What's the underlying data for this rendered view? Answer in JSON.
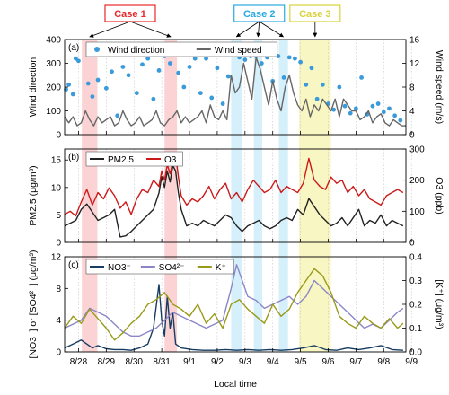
{
  "xaxis": {
    "label": "Local time",
    "ticks": [
      "8/28",
      "8/29",
      "8/30",
      "8/31",
      "9/1",
      "9/2",
      "9/3",
      "9/4",
      "9/5",
      "9/6",
      "9/7",
      "9/8",
      "9/9"
    ],
    "range": [
      0,
      12.3
    ]
  },
  "cases": [
    {
      "label": "Case 1",
      "color": "#e8282b",
      "spans": [
        [
          0.62,
          1.18
        ],
        [
          3.6,
          4.05
        ]
      ]
    },
    {
      "label": "Case 2",
      "color": "#2aa9e0",
      "spans": [
        [
          6.0,
          6.38
        ],
        [
          6.82,
          7.12
        ],
        [
          7.72,
          8.05
        ]
      ]
    },
    {
      "label": "Case 3",
      "color": "#d8d23a",
      "spans": [
        [
          8.45,
          9.6
        ]
      ]
    }
  ],
  "colors": {
    "case1_fill": "#fbd3d4",
    "case2_fill": "#d6f0fb",
    "case3_fill": "#f8f6c3"
  },
  "chart_data": [
    {
      "type": "scatter+line",
      "panel_label": "(a)",
      "ylabel": "Wind direction",
      "y2label": "Wind speed (m/s)",
      "ylim": [
        0,
        400
      ],
      "y2lim": [
        0,
        16
      ],
      "yticks": [
        "0",
        "100",
        "200",
        "300",
        "400"
      ],
      "y2ticks": [
        "0",
        "4",
        "8",
        "12",
        "16"
      ],
      "legend": [
        "Wind direction",
        "Wind speed"
      ],
      "series": [
        {
          "name": "Wind direction",
          "color": "#3b9ad9",
          "axis": "left",
          "kind": "points",
          "x": [
            0.05,
            0.15,
            0.3,
            0.4,
            0.5,
            0.85,
            1.0,
            1.2,
            1.5,
            1.7,
            1.9,
            2.1,
            2.3,
            2.6,
            2.8,
            3.0,
            3.2,
            3.4,
            3.6,
            3.8,
            4.1,
            4.3,
            4.5,
            4.7,
            4.9,
            5.1,
            5.3,
            5.5,
            5.7,
            5.9,
            6.1,
            6.3,
            6.5,
            6.7,
            6.9,
            7.1,
            7.3,
            7.5,
            7.7,
            7.9,
            8.1,
            8.3,
            8.5,
            8.7,
            8.9,
            9.1,
            9.3,
            9.5,
            9.7,
            9.9,
            10.1,
            10.3,
            10.5,
            10.7,
            10.9,
            11.1,
            11.3,
            11.5,
            11.7,
            11.9,
            12.1
          ],
          "y": [
            190,
            210,
            170,
            320,
            310,
            215,
            160,
            230,
            195,
            265,
            80,
            285,
            250,
            175,
            295,
            320,
            150,
            270,
            330,
            300,
            260,
            200,
            285,
            320,
            175,
            320,
            155,
            280,
            130,
            245,
            335,
            325,
            315,
            330,
            330,
            300,
            325,
            225,
            330,
            240,
            325,
            320,
            305,
            210,
            280,
            150,
            210,
            130,
            105,
            200,
            120,
            90,
            110,
            240,
            85,
            120,
            130,
            95,
            110,
            80,
            60
          ]
        },
        {
          "name": "Wind speed",
          "color": "#666666",
          "axis": "right",
          "kind": "line",
          "x": [
            0,
            0.15,
            0.3,
            0.45,
            0.6,
            0.75,
            0.9,
            1.05,
            1.2,
            1.35,
            1.5,
            1.65,
            1.8,
            1.95,
            2.1,
            2.25,
            2.4,
            2.55,
            2.7,
            2.85,
            3.0,
            3.15,
            3.3,
            3.45,
            3.6,
            3.75,
            3.9,
            4.05,
            4.2,
            4.35,
            4.5,
            4.65,
            4.8,
            4.95,
            5.1,
            5.25,
            5.4,
            5.55,
            5.7,
            5.85,
            6.0,
            6.15,
            6.3,
            6.45,
            6.6,
            6.75,
            6.9,
            7.05,
            7.2,
            7.35,
            7.5,
            7.65,
            7.8,
            7.95,
            8.1,
            8.25,
            8.4,
            8.55,
            8.7,
            8.85,
            9.0,
            9.15,
            9.3,
            9.45,
            9.6,
            9.75,
            9.9,
            10.05,
            10.2,
            10.35,
            10.5,
            10.65,
            10.8,
            10.95,
            11.1,
            11.25,
            11.4,
            11.55,
            11.7,
            11.85,
            12.0,
            12.15,
            12.3
          ],
          "y": [
            3,
            2,
            3,
            1.5,
            2,
            4,
            2.5,
            1.5,
            3,
            2,
            2.5,
            3,
            1.5,
            2,
            4,
            2.5,
            1.5,
            2,
            3,
            1.5,
            2,
            2.5,
            4,
            2,
            1.5,
            2.5,
            3,
            4,
            2,
            3,
            2,
            2.5,
            3,
            4,
            2,
            5,
            3,
            2.5,
            4,
            2.5,
            10,
            7,
            8,
            12,
            9,
            6,
            13,
            11,
            8,
            5,
            9,
            6,
            4,
            8,
            10,
            7,
            5,
            4,
            6,
            3,
            5,
            4,
            6,
            5,
            4,
            6,
            3,
            6,
            5,
            4,
            4,
            2.5,
            3,
            4,
            2,
            3,
            3.5,
            2,
            1.5,
            2.5,
            2,
            1.5,
            1.5
          ]
        }
      ]
    },
    {
      "type": "line",
      "panel_label": "(b)",
      "ylabel": "PM2.5 (μg/m³)",
      "y2label": "O3 (ppb)",
      "ylim": [
        0,
        17
      ],
      "y2lim": [
        0,
        300
      ],
      "yticks": [
        "0",
        "5",
        "10",
        "15"
      ],
      "y2ticks": [
        "0",
        "100",
        "200",
        "300"
      ],
      "legend": [
        "PM2.5",
        "O3"
      ],
      "series": [
        {
          "name": "PM2.5",
          "color": "#222222",
          "axis": "left",
          "x": [
            0,
            0.2,
            0.4,
            0.6,
            0.8,
            1.0,
            1.2,
            1.4,
            1.6,
            1.8,
            2.0,
            2.2,
            2.4,
            2.6,
            2.8,
            3.0,
            3.2,
            3.4,
            3.5,
            3.6,
            3.7,
            3.8,
            3.9,
            4.0,
            4.1,
            4.2,
            4.4,
            4.6,
            4.8,
            5.0,
            5.2,
            5.4,
            5.6,
            5.8,
            6.0,
            6.2,
            6.4,
            6.6,
            6.8,
            7.0,
            7.2,
            7.4,
            7.6,
            7.8,
            8.0,
            8.2,
            8.4,
            8.6,
            8.8,
            9.0,
            9.2,
            9.4,
            9.6,
            9.8,
            10.0,
            10.2,
            10.4,
            10.6,
            10.8,
            11.0,
            11.2,
            11.4,
            11.6,
            11.8,
            12.0,
            12.2
          ],
          "y": [
            3,
            3.5,
            4,
            6,
            7,
            5.5,
            4,
            4.5,
            5,
            6,
            1,
            1.2,
            2,
            3,
            4,
            5,
            6,
            9,
            12,
            10,
            13,
            11,
            14,
            13,
            9,
            6,
            3,
            3.5,
            3,
            4,
            3.5,
            3,
            4,
            5,
            4.5,
            3,
            2,
            3,
            3.5,
            4,
            3,
            2.5,
            3,
            4,
            4.5,
            4,
            6,
            5,
            8,
            6.5,
            5,
            4,
            3,
            3.5,
            4.5,
            3,
            4.5,
            6,
            3,
            4,
            3.5,
            5,
            3,
            4,
            3.5,
            3
          ]
        },
        {
          "name": "O3",
          "color": "#cc1a1a",
          "axis": "right",
          "x": [
            0,
            0.2,
            0.4,
            0.6,
            0.8,
            1.0,
            1.2,
            1.4,
            1.6,
            1.8,
            2.0,
            2.2,
            2.4,
            2.6,
            2.8,
            3.0,
            3.2,
            3.4,
            3.5,
            3.6,
            3.7,
            3.8,
            3.9,
            4.0,
            4.1,
            4.2,
            4.4,
            4.6,
            4.8,
            5.0,
            5.2,
            5.4,
            5.6,
            5.8,
            6.0,
            6.2,
            6.4,
            6.6,
            6.8,
            7.0,
            7.2,
            7.4,
            7.6,
            7.8,
            8.0,
            8.2,
            8.4,
            8.6,
            8.8,
            9.0,
            9.2,
            9.4,
            9.6,
            9.8,
            10.0,
            10.2,
            10.4,
            10.6,
            10.8,
            11.0,
            11.2,
            11.4,
            11.6,
            11.8,
            12.0,
            12.2
          ],
          "y": [
            90,
            100,
            85,
            130,
            170,
            120,
            160,
            140,
            175,
            150,
            110,
            130,
            90,
            140,
            170,
            160,
            200,
            180,
            230,
            200,
            250,
            220,
            260,
            280,
            210,
            150,
            120,
            140,
            130,
            150,
            180,
            140,
            170,
            190,
            140,
            160,
            130,
            170,
            200,
            180,
            160,
            170,
            200,
            160,
            180,
            170,
            160,
            190,
            270,
            200,
            180,
            170,
            210,
            190,
            200,
            160,
            180,
            150,
            170,
            140,
            130,
            120,
            150,
            160,
            170,
            160
          ]
        }
      ]
    },
    {
      "type": "line",
      "panel_label": "(c)",
      "ylabel": "[NO3⁻] or [SO4²⁻] (μg/m³)",
      "y2label": "[K⁺] (μg/m³)",
      "ylim": [
        0,
        12
      ],
      "y2lim": [
        0,
        0.4
      ],
      "yticks": [
        "0",
        "4",
        "8",
        "12"
      ],
      "y2ticks": [
        "0.0",
        "0.1",
        "0.2",
        "0.3",
        "0.4"
      ],
      "legend": [
        "NO3⁻",
        "SO4²⁻",
        "K⁺"
      ],
      "series": [
        {
          "name": "NO3⁻",
          "color": "#173d63",
          "axis": "left",
          "x": [
            0,
            0.3,
            0.6,
            0.8,
            1.0,
            1.2,
            1.5,
            1.8,
            2.1,
            2.4,
            2.7,
            3.0,
            3.2,
            3.4,
            3.5,
            3.6,
            3.7,
            3.8,
            3.9,
            4.0,
            4.2,
            4.6,
            5.0,
            5.4,
            5.8,
            6.2,
            6.6,
            7.0,
            7.4,
            7.8,
            8.2,
            8.6,
            9.0,
            9.4,
            9.8,
            10.2,
            10.6,
            11.0,
            11.4,
            11.8,
            12.2
          ],
          "y": [
            0.5,
            1,
            1.5,
            1,
            0.5,
            0.8,
            0.4,
            0.3,
            0.3,
            0.2,
            0.5,
            1,
            3,
            8.5,
            4,
            2,
            7,
            3,
            5,
            1,
            0.5,
            0.3,
            0.2,
            0.2,
            0.3,
            0.2,
            0.3,
            0.2,
            0.3,
            0.2,
            0.3,
            0.5,
            0.8,
            0.3,
            0.2,
            0.5,
            0.3,
            0.5,
            0.8,
            0.3,
            0.2
          ]
        },
        {
          "name": "SO4²⁻",
          "color": "#8a86c6",
          "axis": "left",
          "x": [
            0,
            0.3,
            0.6,
            0.9,
            1.2,
            1.5,
            1.8,
            2.1,
            2.4,
            2.7,
            3.0,
            3.3,
            3.6,
            3.9,
            4.2,
            4.5,
            4.8,
            5.1,
            5.4,
            5.7,
            6.0,
            6.2,
            6.4,
            6.6,
            6.9,
            7.2,
            7.5,
            7.8,
            8.1,
            8.4,
            8.7,
            9.0,
            9.3,
            9.6,
            9.9,
            10.2,
            10.5,
            10.8,
            11.1,
            11.4,
            11.7,
            12.0,
            12.2
          ],
          "y": [
            3,
            3.5,
            4,
            5.5,
            5,
            4.5,
            3.5,
            2.5,
            2,
            2,
            2.5,
            3,
            4,
            5,
            4.5,
            4,
            3.5,
            3,
            3.5,
            4,
            8,
            11,
            9,
            7,
            6.5,
            5.5,
            6,
            6.5,
            7,
            6,
            7,
            9,
            8,
            7,
            6,
            5,
            4,
            3,
            3.5,
            3,
            4,
            5,
            5.5
          ]
        },
        {
          "name": "K⁺",
          "color": "#9a9a1a",
          "axis": "right",
          "x": [
            0,
            0.3,
            0.6,
            0.9,
            1.2,
            1.5,
            1.8,
            2.1,
            2.4,
            2.7,
            3.0,
            3.3,
            3.6,
            3.9,
            4.2,
            4.5,
            4.8,
            5.1,
            5.4,
            5.7,
            6.0,
            6.3,
            6.6,
            6.9,
            7.2,
            7.5,
            7.8,
            8.1,
            8.4,
            8.7,
            9.0,
            9.3,
            9.6,
            9.9,
            10.2,
            10.5,
            10.8,
            11.1,
            11.4,
            11.7,
            12.0,
            12.2
          ],
          "y": [
            0.1,
            0.15,
            0.12,
            0.18,
            0.14,
            0.1,
            0.05,
            0.08,
            0.12,
            0.15,
            0.2,
            0.22,
            0.25,
            0.2,
            0.18,
            0.15,
            0.2,
            0.12,
            0.16,
            0.1,
            0.2,
            0.22,
            0.18,
            0.15,
            0.12,
            0.2,
            0.15,
            0.18,
            0.25,
            0.3,
            0.35,
            0.32,
            0.25,
            0.15,
            0.12,
            0.1,
            0.15,
            0.12,
            0.1,
            0.14,
            0.1,
            0.12
          ]
        }
      ]
    }
  ]
}
